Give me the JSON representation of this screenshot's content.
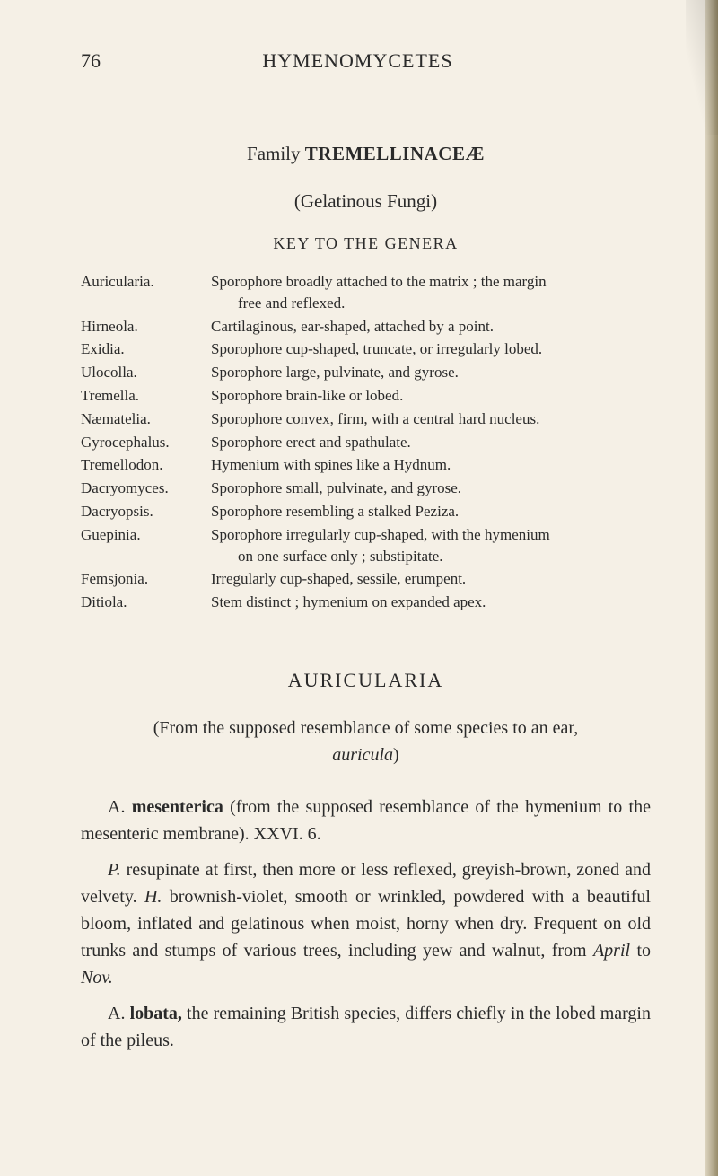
{
  "header": {
    "page_number": "76",
    "running_title": "HYMENOMYCETES"
  },
  "family": {
    "label": "Family ",
    "name": "TREMELLINACEÆ",
    "subtitle": "(Gelatinous Fungi)",
    "key_heading": "KEY TO THE GENERA"
  },
  "genera": [
    {
      "name": "Auricularia.",
      "desc_line1": "Sporophore broadly attached to the matrix ; the margin",
      "desc_line2": "free and reflexed."
    },
    {
      "name": "Hirneola.",
      "desc_line1": "Cartilaginous, ear-shaped, attached by a point."
    },
    {
      "name": "Exidia.",
      "desc_line1": "Sporophore cup-shaped, truncate, or irregularly lobed."
    },
    {
      "name": "Ulocolla.",
      "desc_line1": "Sporophore large, pulvinate, and gyrose."
    },
    {
      "name": "Tremella.",
      "desc_line1": "Sporophore brain-like or lobed."
    },
    {
      "name": "Næmatelia.",
      "desc_line1": "Sporophore convex, firm, with a central hard nucleus."
    },
    {
      "name": "Gyrocephalus.",
      "desc_line1": "Sporophore erect and spathulate."
    },
    {
      "name": "Tremellodon.",
      "desc_line1": "Hymenium with spines like a Hydnum."
    },
    {
      "name": "Dacryomyces.",
      "desc_line1": "Sporophore small, pulvinate, and gyrose."
    },
    {
      "name": "Dacryopsis.",
      "desc_line1": "Sporophore resembling a stalked Peziza."
    },
    {
      "name": "Guepinia.",
      "desc_line1": "Sporophore irregularly cup-shaped, with the hymenium",
      "desc_line2": "on one surface only ; substipitate."
    },
    {
      "name": "Femsjonia.",
      "desc_line1": "Irregularly cup-shaped, sessile, erumpent."
    },
    {
      "name": "Ditiola.",
      "desc_line1": "Stem distinct ; hymenium on expanded apex."
    }
  ],
  "section": {
    "title": "AURICULARIA",
    "sub_pre": "(From the supposed resemblance of some species to an ear,",
    "sub_ital": "auricula",
    "sub_post": ")"
  },
  "body_text": {
    "p1_a": "A. ",
    "p1_b": "mesenterica",
    "p1_c": " (from the supposed resemblance of the hymenium to the mesenteric membrane). XXVI. 6.",
    "p2_i1": "P.",
    "p2_a": " resupinate at first, then more or less reflexed, greyish-brown, zoned and velvety. ",
    "p2_i2": "H.",
    "p2_b": " brownish-violet, smooth or wrinkled, powdered with a beautiful bloom, inflated and gelatinous when moist, horny when dry. Frequent on old trunks and stumps of various trees, including yew and walnut, from ",
    "p2_i3": "April",
    "p2_c": " to ",
    "p2_i4": "Nov.",
    "p3_a": "A. ",
    "p3_b": "lobata,",
    "p3_c": " the remaining British species, differs chiefly in the lobed margin of the pileus."
  }
}
